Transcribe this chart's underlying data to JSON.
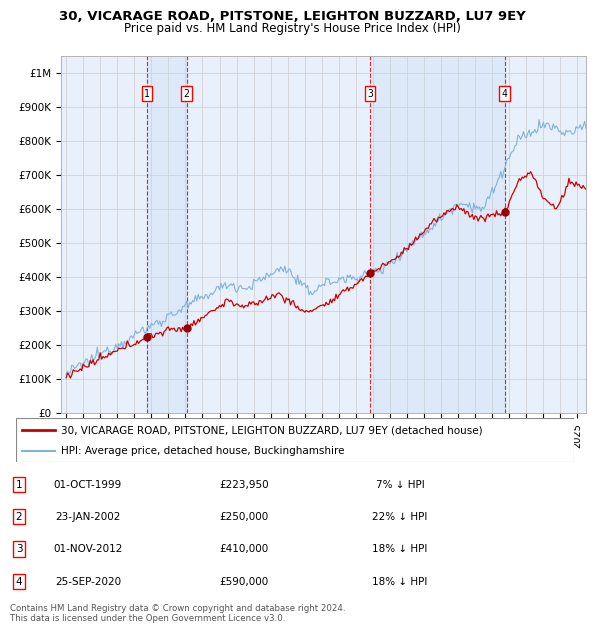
{
  "title": "30, VICARAGE ROAD, PITSTONE, LEIGHTON BUZZARD, LU7 9EY",
  "subtitle": "Price paid vs. HM Land Registry's House Price Index (HPI)",
  "hpi_color": "#7fb3d9",
  "hpi_fill_color": "#d6e8f5",
  "price_color": "#cc0000",
  "background_color": "#e8f0fb",
  "sale_dates_years": [
    1999.75,
    2002.07,
    2012.83,
    2020.73
  ],
  "sale_prices": [
    223950,
    250000,
    410000,
    590000
  ],
  "sale_labels": [
    "1",
    "2",
    "3",
    "4"
  ],
  "legend_price_label": "30, VICARAGE ROAD, PITSTONE, LEIGHTON BUZZARD, LU7 9EY (detached house)",
  "legend_hpi_label": "HPI: Average price, detached house, Buckinghamshire",
  "table_data": [
    [
      "1",
      "01-OCT-1999",
      "£223,950",
      "7% ↓ HPI"
    ],
    [
      "2",
      "23-JAN-2002",
      "£250,000",
      "22% ↓ HPI"
    ],
    [
      "3",
      "01-NOV-2012",
      "£410,000",
      "18% ↓ HPI"
    ],
    [
      "4",
      "25-SEP-2020",
      "£590,000",
      "18% ↓ HPI"
    ]
  ],
  "footer": "Contains HM Land Registry data © Crown copyright and database right 2024.\nThis data is licensed under the Open Government Licence v3.0.",
  "ylim_max": 1050000,
  "xlim_start": 1994.7,
  "xlim_end": 2025.5
}
